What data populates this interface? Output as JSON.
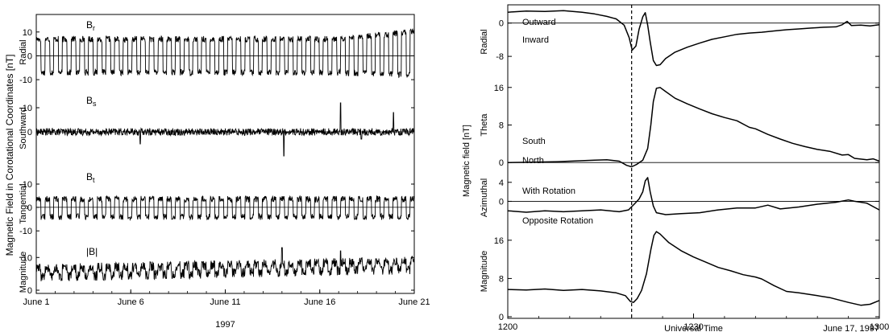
{
  "colors": {
    "line": "#000000",
    "background": "#ffffff"
  },
  "chart_data": [
    {
      "type": "line",
      "ylabel": "Magnetic Field in Corotational Coordinates [nT]",
      "xlabel": "1997",
      "x_ticks": [
        "June 1",
        "June 6",
        "June 11",
        "June 16",
        "June 21"
      ],
      "x_range_days": [
        1,
        21
      ],
      "panels": [
        {
          "id": "br",
          "component": "Radial",
          "label_main": "B",
          "label_sub": "r",
          "ylim": [
            -13,
            16
          ],
          "ticks": [
            {
              "v": 10,
              "t": "10"
            },
            {
              "v": 0,
              "t": "0"
            },
            {
              "v": -10,
              "t": "-10"
            }
          ],
          "zero_line": true,
          "base": 0,
          "kind": "square",
          "amp": 7,
          "neg": -7,
          "period": 0.46
        },
        {
          "id": "bs",
          "component": "Southward",
          "label_main": "B",
          "label_sub": "s",
          "ylim": [
            -13,
            16
          ],
          "ticks": [
            {
              "v": 10,
              "t": "10"
            },
            {
              "v": 0,
              "t": "0"
            }
          ],
          "zero_line": true,
          "base": 0,
          "kind": "noise",
          "amp": 1.5,
          "spikes": [
            {
              "day": 6.5,
              "v": -5
            },
            {
              "day": 14.1,
              "v": -10
            },
            {
              "day": 17.1,
              "v": 12
            },
            {
              "day": 19.9,
              "v": 8
            },
            {
              "day": 18.2,
              "v": -3
            }
          ]
        },
        {
          "id": "bt",
          "component": "Tangential",
          "label_main": "B",
          "label_sub": "t",
          "ylim": [
            -13,
            16
          ],
          "ticks": [
            {
              "v": -10,
              "t": "-10"
            },
            {
              "v": 0,
              "t": "0"
            },
            {
              "v": -10,
              "t": "-10"
            }
          ],
          "zero_line": true,
          "base": 0,
          "kind": "square",
          "amp": 3.5,
          "neg": -4,
          "period": 0.46
        },
        {
          "id": "bmag",
          "component": "Magnitude",
          "label_main": "|B|",
          "label_sub": "",
          "ylim": [
            0,
            14
          ],
          "ticks": [
            {
              "v": 10,
              "t": "10"
            },
            {
              "v": 0,
              "t": "0"
            }
          ],
          "zero_line": false,
          "base": 5,
          "kind": "mag",
          "amp": 3,
          "spikes": [
            {
              "day": 14.0,
              "v": 13
            },
            {
              "day": 17.1,
              "v": 12
            }
          ]
        }
      ]
    },
    {
      "type": "line",
      "ylabel": "Magnetic field [nT]",
      "xlabel": "Universal Time",
      "date_label": "June 17, 1997",
      "x_ticks": [
        "1200",
        "1230",
        "1300"
      ],
      "x_range_min": [
        0,
        60
      ],
      "event_line_min": 20,
      "panels": [
        {
          "id": "rad",
          "component": "Radial",
          "ylim": [
            -13,
            4
          ],
          "ticks": [
            {
              "v": 0,
              "t": "0"
            },
            {
              "v": -8,
              "t": "-8"
            }
          ],
          "annotations": [
            "Outward",
            "Inward"
          ],
          "points": [
            [
              0,
              2.6
            ],
            [
              3,
              2.9
            ],
            [
              6,
              2.8
            ],
            [
              9,
              3.0
            ],
            [
              12,
              2.6
            ],
            [
              14,
              2.2
            ],
            [
              16,
              1.6
            ],
            [
              17.5,
              1.0
            ],
            [
              18.8,
              -0.5
            ],
            [
              19.6,
              -3.5
            ],
            [
              20.1,
              -6.5
            ],
            [
              20.7,
              -5.5
            ],
            [
              21.2,
              -1.5
            ],
            [
              21.8,
              1.5
            ],
            [
              22.2,
              2.5
            ],
            [
              22.6,
              -0.5
            ],
            [
              23.0,
              -4.5
            ],
            [
              23.5,
              -9.0
            ],
            [
              24.0,
              -10.2
            ],
            [
              24.6,
              -10.0
            ],
            [
              25.5,
              -8.5
            ],
            [
              27,
              -7.0
            ],
            [
              29,
              -5.8
            ],
            [
              31,
              -4.8
            ],
            [
              33,
              -3.9
            ],
            [
              35,
              -3.3
            ],
            [
              37,
              -2.7
            ],
            [
              39,
              -2.4
            ],
            [
              41,
              -2.2
            ],
            [
              43,
              -1.9
            ],
            [
              45,
              -1.6
            ],
            [
              47,
              -1.4
            ],
            [
              49,
              -1.2
            ],
            [
              51,
              -1.0
            ],
            [
              53,
              -0.9
            ],
            [
              54,
              -0.4
            ],
            [
              54.8,
              0.4
            ],
            [
              55.5,
              -0.6
            ],
            [
              57,
              -0.5
            ],
            [
              58.5,
              -0.7
            ],
            [
              60,
              -0.4
            ]
          ]
        },
        {
          "id": "theta",
          "component": "Theta",
          "ylim": [
            -1.5,
            17.5
          ],
          "ticks": [
            {
              "v": 16,
              "t": "16"
            },
            {
              "v": 8,
              "t": "8"
            },
            {
              "v": 0,
              "t": "0"
            }
          ],
          "annotations": [
            "South",
            "North"
          ],
          "points": [
            [
              0,
              0.0
            ],
            [
              4,
              0.1
            ],
            [
              8,
              0.2
            ],
            [
              12,
              0.4
            ],
            [
              14,
              0.5
            ],
            [
              16,
              0.6
            ],
            [
              18,
              0.3
            ],
            [
              19.2,
              -0.6
            ],
            [
              20,
              -0.9
            ],
            [
              20.8,
              -0.4
            ],
            [
              21.8,
              0.5
            ],
            [
              22.6,
              3.0
            ],
            [
              23.1,
              8.0
            ],
            [
              23.5,
              13.0
            ],
            [
              24.0,
              15.8
            ],
            [
              24.6,
              16.0
            ],
            [
              25.4,
              15.2
            ],
            [
              27,
              13.7
            ],
            [
              29,
              12.5
            ],
            [
              31,
              11.4
            ],
            [
              33,
              10.4
            ],
            [
              35,
              9.6
            ],
            [
              37,
              8.9
            ],
            [
              39,
              7.5
            ],
            [
              40,
              7.2
            ],
            [
              42,
              6.0
            ],
            [
              44,
              5.0
            ],
            [
              46,
              4.1
            ],
            [
              48,
              3.4
            ],
            [
              50,
              2.8
            ],
            [
              52,
              2.4
            ],
            [
              54,
              1.6
            ],
            [
              55,
              1.7
            ],
            [
              56,
              0.9
            ],
            [
              58,
              0.6
            ],
            [
              59,
              0.8
            ],
            [
              60,
              0.3
            ]
          ]
        },
        {
          "id": "azi",
          "component": "Azimuthal",
          "ylim": [
            -4.5,
            6
          ],
          "ticks": [
            {
              "v": 4,
              "t": "4"
            },
            {
              "v": 0,
              "t": "0"
            }
          ],
          "annotations": [
            "With Rotation",
            "Opposite Rotation"
          ],
          "points": [
            [
              0,
              -2.0
            ],
            [
              3,
              -2.3
            ],
            [
              6,
              -2.0
            ],
            [
              9,
              -2.2
            ],
            [
              12,
              -2.0
            ],
            [
              15,
              -1.8
            ],
            [
              18,
              -2.2
            ],
            [
              19.5,
              -1.8
            ],
            [
              20.5,
              -0.5
            ],
            [
              21.2,
              0.5
            ],
            [
              21.8,
              2.0
            ],
            [
              22.2,
              4.3
            ],
            [
              22.6,
              5.0
            ],
            [
              23.0,
              2.0
            ],
            [
              23.5,
              -1.0
            ],
            [
              24,
              -2.4
            ],
            [
              25.5,
              -2.8
            ],
            [
              28,
              -2.6
            ],
            [
              31,
              -2.4
            ],
            [
              34,
              -1.8
            ],
            [
              37,
              -1.4
            ],
            [
              40,
              -1.4
            ],
            [
              42,
              -0.8
            ],
            [
              44,
              -1.6
            ],
            [
              47,
              -1.2
            ],
            [
              50,
              -0.6
            ],
            [
              53,
              -0.2
            ],
            [
              55,
              0.3
            ],
            [
              56,
              0.0
            ],
            [
              58,
              -0.4
            ],
            [
              60,
              -1.8
            ]
          ]
        },
        {
          "id": "mag",
          "component": "Magnitude",
          "ylim": [
            0,
            19
          ],
          "ticks": [
            {
              "v": 16,
              "t": "16"
            },
            {
              "v": 8,
              "t": "8"
            },
            {
              "v": 0,
              "t": "0"
            }
          ],
          "annotations": [],
          "points": [
            [
              0,
              5.7
            ],
            [
              3,
              5.6
            ],
            [
              6,
              5.8
            ],
            [
              9,
              5.5
            ],
            [
              12,
              5.7
            ],
            [
              15,
              5.4
            ],
            [
              17.5,
              5.0
            ],
            [
              19,
              4.4
            ],
            [
              19.8,
              3.2
            ],
            [
              20.3,
              3.0
            ],
            [
              20.9,
              3.8
            ],
            [
              21.6,
              5.5
            ],
            [
              22.4,
              9.0
            ],
            [
              23.1,
              14.0
            ],
            [
              23.6,
              17.0
            ],
            [
              24.0,
              17.8
            ],
            [
              24.6,
              17.3
            ],
            [
              26,
              15.5
            ],
            [
              28,
              13.8
            ],
            [
              30,
              12.5
            ],
            [
              32,
              11.4
            ],
            [
              34,
              10.3
            ],
            [
              36,
              9.6
            ],
            [
              38,
              8.8
            ],
            [
              40,
              8.3
            ],
            [
              41,
              7.9
            ],
            [
              43,
              6.5
            ],
            [
              45,
              5.3
            ],
            [
              47,
              5.0
            ],
            [
              50,
              4.4
            ],
            [
              52,
              4.0
            ],
            [
              55,
              3.0
            ],
            [
              57,
              2.4
            ],
            [
              58.5,
              2.6
            ],
            [
              60,
              3.4
            ]
          ]
        }
      ]
    }
  ]
}
